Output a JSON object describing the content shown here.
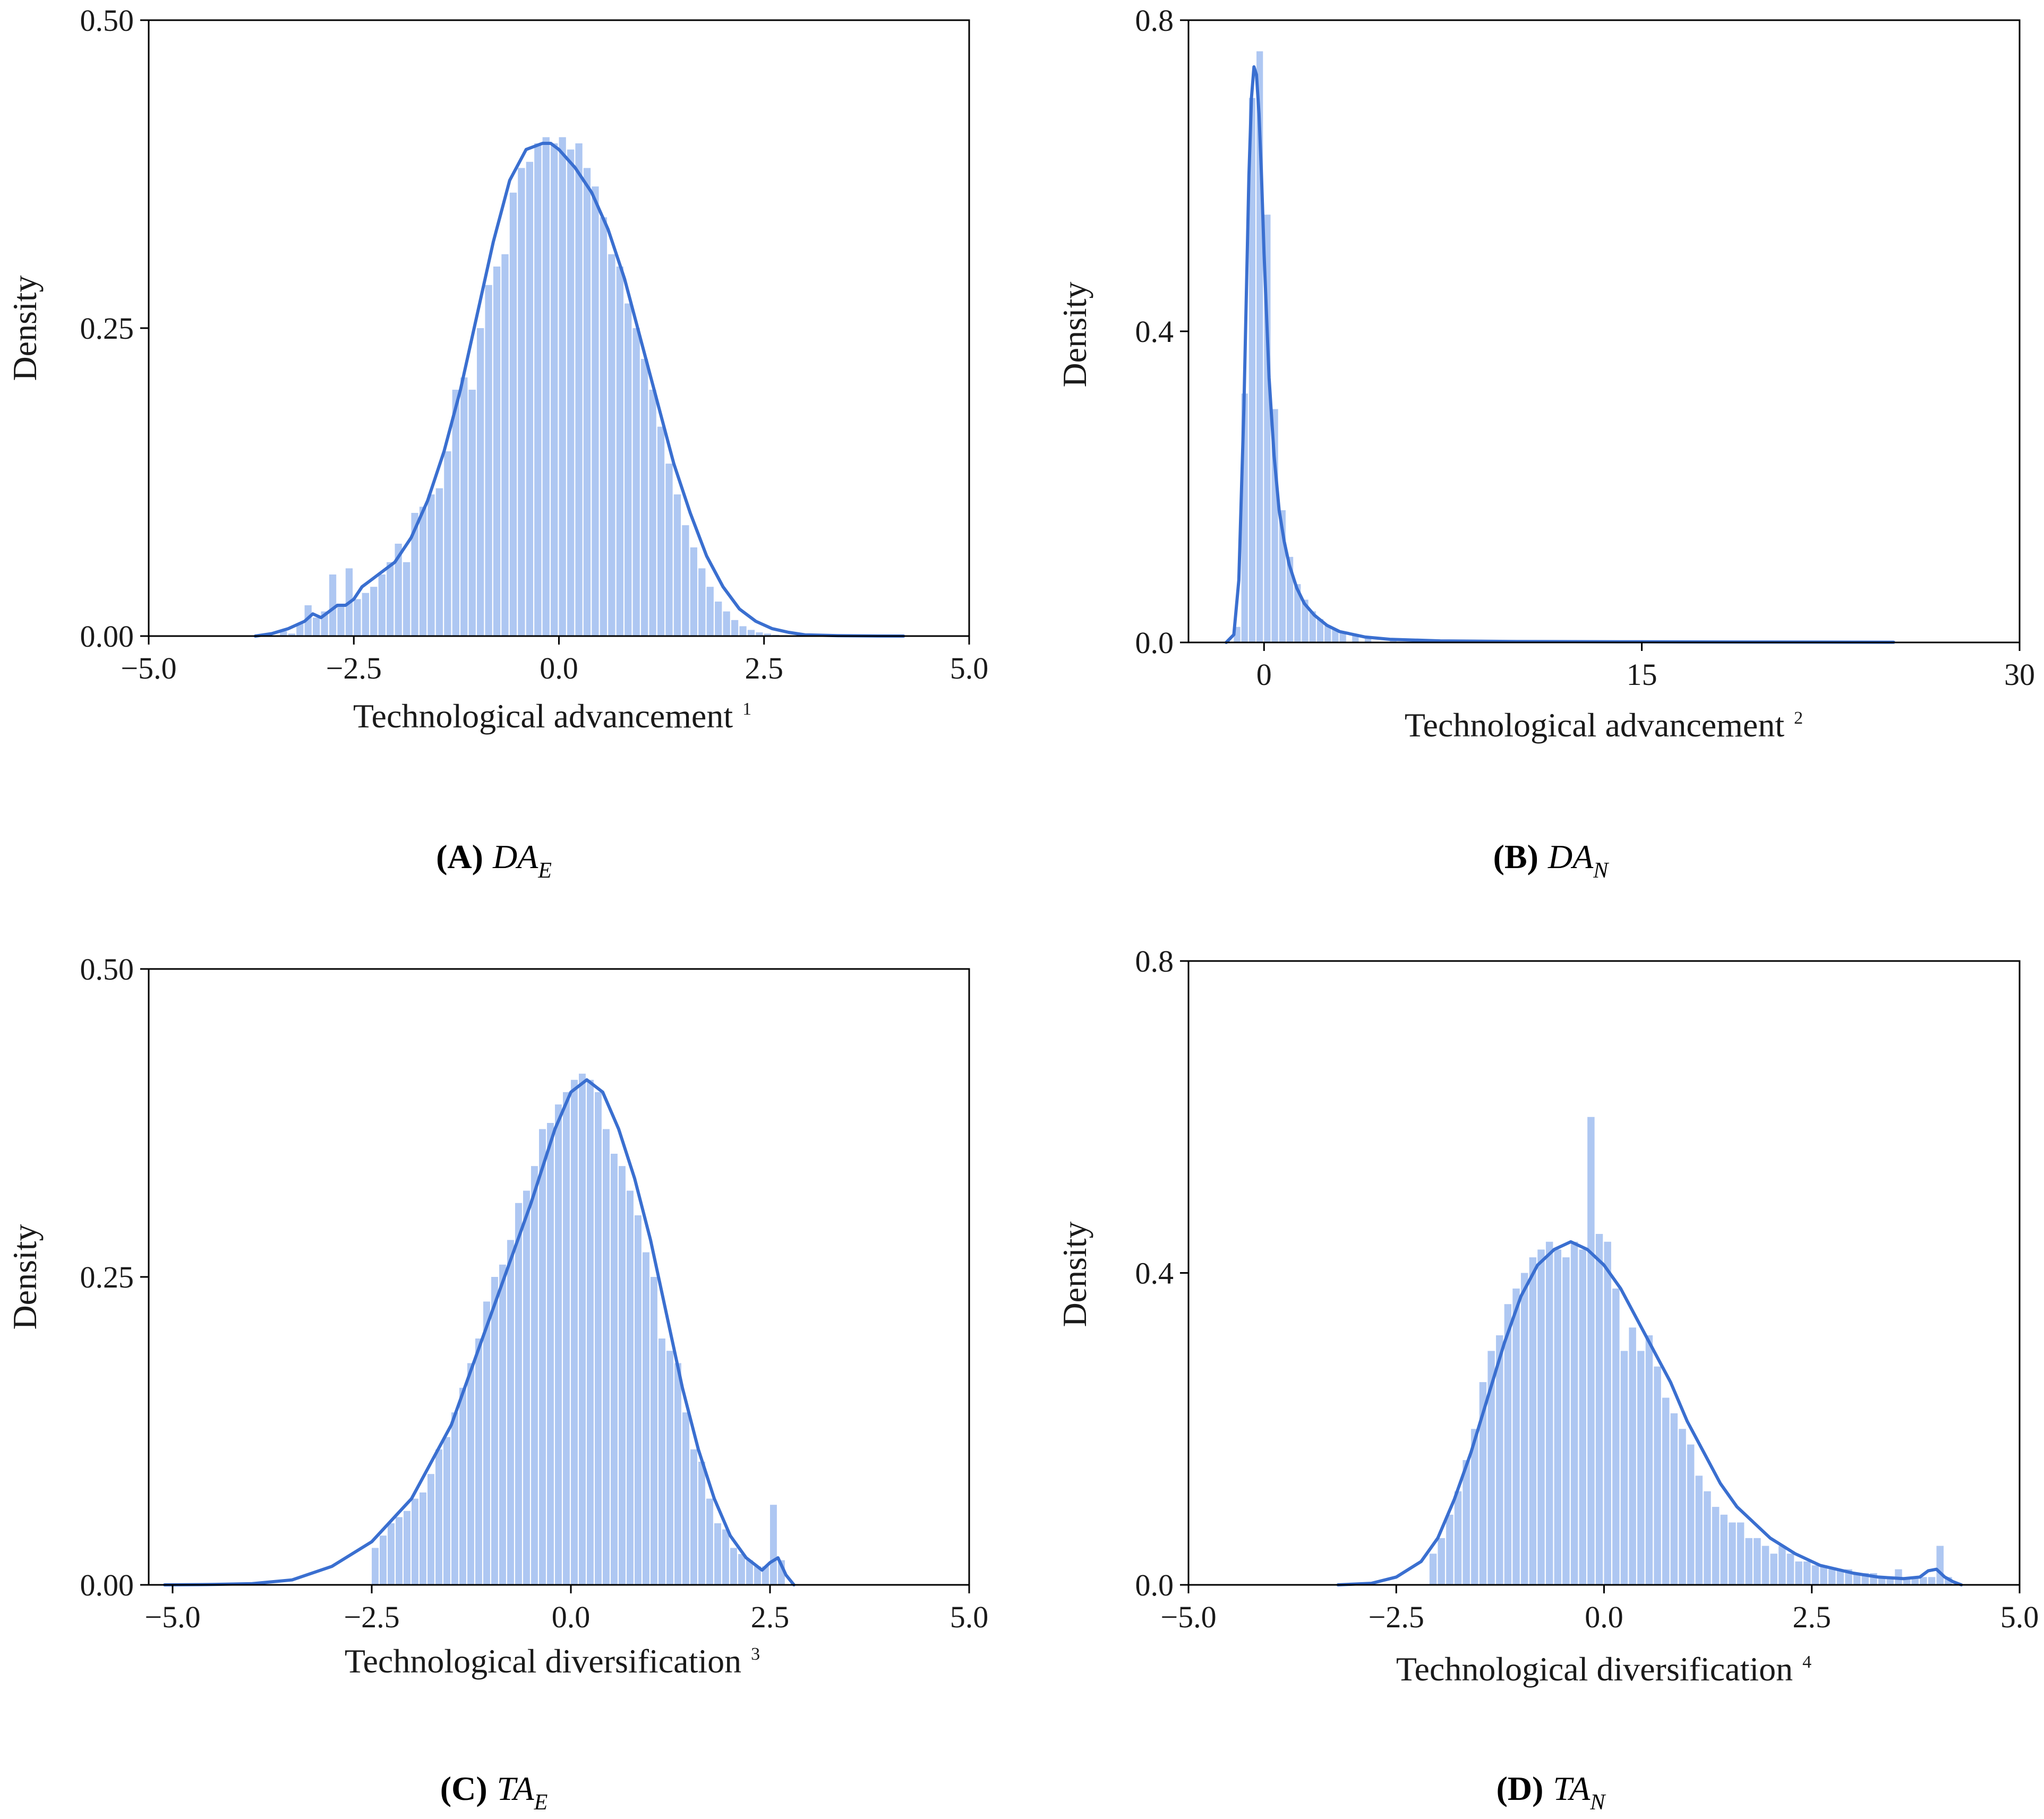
{
  "colors": {
    "bar": "#aec7f2",
    "kde": "#3a6fd0",
    "axis": "#000000"
  },
  "chart_data": [
    {
      "id": "A",
      "type": "histogram-kde",
      "caption_letter": "(A)",
      "caption_var": "DA",
      "caption_sub": "E",
      "xlabel": "Technological advancement",
      "xlabel_sup": "1",
      "ylabel": "Density",
      "xlim": [
        -5.0,
        5.0
      ],
      "ylim": [
        0.0,
        0.5
      ],
      "xticks": [
        -5.0,
        -2.5,
        0.0,
        2.5,
        5.0
      ],
      "xtick_labels": [
        "−5.0",
        "−2.5",
        "0.0",
        "2.5",
        "5.0"
      ],
      "yticks": [
        0.0,
        0.25,
        0.5
      ],
      "ytick_labels": [
        "0.00",
        "0.25",
        "0.50"
      ],
      "bins": {
        "x": [
          -3.4,
          -3.3,
          -3.2,
          -3.1,
          -3.0,
          -2.9,
          -2.8,
          -2.7,
          -2.6,
          -2.5,
          -2.4,
          -2.3,
          -2.2,
          -2.1,
          -2.0,
          -1.9,
          -1.8,
          -1.7,
          -1.6,
          -1.5,
          -1.4,
          -1.3,
          -1.2,
          -1.1,
          -1.0,
          -0.9,
          -0.8,
          -0.7,
          -0.6,
          -0.5,
          -0.4,
          -0.3,
          -0.2,
          -0.1,
          0.0,
          0.1,
          0.2,
          0.3,
          0.4,
          0.5,
          0.6,
          0.7,
          0.8,
          0.9,
          1.0,
          1.1,
          1.2,
          1.3,
          1.4,
          1.5,
          1.6,
          1.7,
          1.8,
          1.9,
          2.0,
          2.1,
          2.2,
          2.3,
          2.4,
          2.5,
          2.6,
          2.7,
          2.8,
          2.9
        ],
        "y": [
          0.004,
          0.002,
          0.01,
          0.025,
          0.015,
          0.02,
          0.05,
          0.025,
          0.055,
          0.03,
          0.035,
          0.04,
          0.05,
          0.06,
          0.075,
          0.06,
          0.1,
          0.105,
          0.115,
          0.12,
          0.15,
          0.2,
          0.21,
          0.2,
          0.25,
          0.285,
          0.3,
          0.31,
          0.36,
          0.38,
          0.385,
          0.4,
          0.405,
          0.4,
          0.405,
          0.395,
          0.4,
          0.38,
          0.365,
          0.34,
          0.31,
          0.3,
          0.27,
          0.25,
          0.225,
          0.2,
          0.17,
          0.14,
          0.115,
          0.09,
          0.072,
          0.055,
          0.04,
          0.028,
          0.02,
          0.013,
          0.008,
          0.005,
          0.003,
          0.002,
          0.001,
          0.0005,
          0.0003,
          0.0002
        ],
        "width": 0.1
      },
      "kde": {
        "x": [
          -3.7,
          -3.5,
          -3.3,
          -3.1,
          -3.0,
          -2.9,
          -2.8,
          -2.7,
          -2.6,
          -2.5,
          -2.4,
          -2.3,
          -2.2,
          -2.0,
          -1.8,
          -1.6,
          -1.4,
          -1.2,
          -1.0,
          -0.8,
          -0.6,
          -0.4,
          -0.2,
          -0.1,
          0.0,
          0.2,
          0.4,
          0.6,
          0.8,
          1.0,
          1.2,
          1.4,
          1.6,
          1.8,
          2.0,
          2.2,
          2.4,
          2.6,
          2.8,
          3.0,
          3.4,
          3.8,
          4.2
        ],
        "y": [
          0.0,
          0.002,
          0.006,
          0.012,
          0.018,
          0.015,
          0.02,
          0.025,
          0.025,
          0.03,
          0.04,
          0.045,
          0.05,
          0.06,
          0.08,
          0.11,
          0.15,
          0.2,
          0.26,
          0.32,
          0.37,
          0.395,
          0.4,
          0.4,
          0.395,
          0.38,
          0.36,
          0.33,
          0.29,
          0.24,
          0.19,
          0.14,
          0.1,
          0.065,
          0.04,
          0.022,
          0.012,
          0.006,
          0.003,
          0.001,
          0.0003,
          0.0001,
          0.0
        ]
      }
    },
    {
      "id": "B",
      "type": "histogram-kde",
      "caption_letter": "(B)",
      "caption_var": "DA",
      "caption_sub": "N",
      "xlabel": "Technological advancement",
      "xlabel_sup": "2",
      "ylabel": "Density",
      "xlim": [
        -3.0,
        30.0
      ],
      "ylim": [
        0.0,
        0.8
      ],
      "xticks": [
        0,
        15,
        30
      ],
      "xtick_labels": [
        "0",
        "15",
        "30"
      ],
      "yticks": [
        0.0,
        0.4,
        0.8
      ],
      "ytick_labels": [
        "0.0",
        "0.4",
        "0.8"
      ],
      "bins": {
        "x": [
          -1.2,
          -0.9,
          -0.6,
          -0.3,
          0.0,
          0.3,
          0.6,
          0.9,
          1.2,
          1.5,
          1.8,
          2.1,
          2.4,
          2.7,
          3.0,
          3.5,
          4.0,
          5.0,
          6.0,
          8.0,
          10.0,
          14.0,
          18.0,
          22.0
        ],
        "y": [
          0.02,
          0.32,
          0.7,
          0.76,
          0.55,
          0.3,
          0.17,
          0.11,
          0.075,
          0.055,
          0.04,
          0.03,
          0.022,
          0.017,
          0.013,
          0.009,
          0.006,
          0.004,
          0.003,
          0.002,
          0.0015,
          0.001,
          0.0008,
          0.0005
        ],
        "width": 0.3
      },
      "kde": {
        "x": [
          -1.5,
          -1.2,
          -1.0,
          -0.8,
          -0.6,
          -0.5,
          -0.4,
          -0.3,
          -0.2,
          -0.1,
          0.0,
          0.2,
          0.4,
          0.6,
          0.8,
          1.0,
          1.3,
          1.6,
          2.0,
          2.5,
          3.0,
          4.0,
          5.0,
          7.0,
          10.0,
          15.0,
          20.0,
          25.0
        ],
        "y": [
          0.0,
          0.01,
          0.08,
          0.3,
          0.6,
          0.7,
          0.74,
          0.73,
          0.68,
          0.6,
          0.5,
          0.34,
          0.24,
          0.17,
          0.13,
          0.1,
          0.07,
          0.05,
          0.035,
          0.022,
          0.014,
          0.007,
          0.004,
          0.002,
          0.0012,
          0.0008,
          0.0005,
          0.0003
        ]
      }
    },
    {
      "id": "C",
      "type": "histogram-kde",
      "caption_letter": "(C)",
      "caption_var": "TA",
      "caption_sub": "E",
      "xlabel": "Technological diversification",
      "xlabel_sup": "3",
      "ylabel": "Density",
      "xlim": [
        -5.3,
        5.0
      ],
      "ylim": [
        0.0,
        0.5
      ],
      "xticks": [
        -5.0,
        -2.5,
        0.0,
        2.5,
        5.0
      ],
      "xtick_labels": [
        "−5.0",
        "−2.5",
        "0.0",
        "2.5",
        "5.0"
      ],
      "yticks": [
        0.0,
        0.25,
        0.5
      ],
      "ytick_labels": [
        "0.00",
        "0.25",
        "0.50"
      ],
      "bins": {
        "x": [
          -2.5,
          -2.4,
          -2.3,
          -2.2,
          -2.1,
          -2.0,
          -1.9,
          -1.8,
          -1.7,
          -1.6,
          -1.5,
          -1.4,
          -1.3,
          -1.2,
          -1.1,
          -1.0,
          -0.9,
          -0.8,
          -0.7,
          -0.6,
          -0.5,
          -0.4,
          -0.3,
          -0.2,
          -0.1,
          0.0,
          0.1,
          0.2,
          0.3,
          0.4,
          0.5,
          0.6,
          0.7,
          0.8,
          0.9,
          1.0,
          1.1,
          1.2,
          1.3,
          1.4,
          1.5,
          1.6,
          1.7,
          1.8,
          1.9,
          2.0,
          2.1,
          2.2,
          2.3,
          2.4,
          2.5,
          2.6
        ],
        "y": [
          0.03,
          0.04,
          0.05,
          0.055,
          0.06,
          0.07,
          0.075,
          0.09,
          0.11,
          0.12,
          0.14,
          0.16,
          0.18,
          0.2,
          0.23,
          0.25,
          0.26,
          0.28,
          0.31,
          0.32,
          0.34,
          0.37,
          0.375,
          0.39,
          0.4,
          0.41,
          0.415,
          0.41,
          0.4,
          0.37,
          0.35,
          0.34,
          0.32,
          0.3,
          0.27,
          0.25,
          0.2,
          0.19,
          0.18,
          0.14,
          0.11,
          0.1,
          0.07,
          0.05,
          0.045,
          0.03,
          0.025,
          0.02,
          0.015,
          0.015,
          0.065,
          0.02
        ],
        "width": 0.1
      },
      "kde": {
        "x": [
          -5.1,
          -4.5,
          -4.0,
          -3.5,
          -3.0,
          -2.5,
          -2.0,
          -1.5,
          -1.0,
          -0.5,
          -0.2,
          0.0,
          0.2,
          0.4,
          0.6,
          0.8,
          1.0,
          1.2,
          1.4,
          1.6,
          1.8,
          2.0,
          2.2,
          2.4,
          2.5,
          2.6,
          2.7,
          2.8
        ],
        "y": [
          0.0,
          0.0003,
          0.001,
          0.004,
          0.015,
          0.035,
          0.07,
          0.13,
          0.22,
          0.31,
          0.37,
          0.4,
          0.41,
          0.4,
          0.37,
          0.33,
          0.28,
          0.22,
          0.16,
          0.11,
          0.07,
          0.04,
          0.022,
          0.012,
          0.018,
          0.022,
          0.008,
          0.0
        ]
      }
    },
    {
      "id": "D",
      "type": "histogram-kde",
      "caption_letter": "(D)",
      "caption_var": "TA",
      "caption_sub": "N",
      "xlabel": "Technological diversification",
      "xlabel_sup": "4",
      "ylabel": "Density",
      "xlim": [
        -5.0,
        5.0
      ],
      "ylim": [
        0.0,
        0.8
      ],
      "xticks": [
        -5.0,
        -2.5,
        0.0,
        2.5,
        5.0
      ],
      "xtick_labels": [
        "−5.0",
        "−2.5",
        "0.0",
        "2.5",
        "5.0"
      ],
      "yticks": [
        0.0,
        0.4,
        0.8
      ],
      "ytick_labels": [
        "0.0",
        "0.4",
        "0.8"
      ],
      "bins": {
        "x": [
          -2.1,
          -2.0,
          -1.9,
          -1.8,
          -1.7,
          -1.6,
          -1.5,
          -1.4,
          -1.3,
          -1.2,
          -1.1,
          -1.0,
          -0.9,
          -0.8,
          -0.7,
          -0.6,
          -0.5,
          -0.4,
          -0.3,
          -0.2,
          -0.1,
          0.0,
          0.1,
          0.2,
          0.3,
          0.4,
          0.5,
          0.6,
          0.7,
          0.8,
          0.9,
          1.0,
          1.1,
          1.2,
          1.3,
          1.4,
          1.5,
          1.6,
          1.7,
          1.8,
          1.9,
          2.0,
          2.1,
          2.2,
          2.3,
          2.4,
          2.5,
          2.6,
          2.7,
          2.8,
          2.9,
          3.0,
          3.1,
          3.2,
          3.3,
          3.4,
          3.5,
          3.6,
          3.7,
          3.8,
          3.9,
          4.0,
          4.1
        ],
        "y": [
          0.04,
          0.06,
          0.09,
          0.12,
          0.16,
          0.2,
          0.26,
          0.3,
          0.32,
          0.36,
          0.38,
          0.4,
          0.42,
          0.43,
          0.44,
          0.43,
          0.42,
          0.44,
          0.43,
          0.6,
          0.45,
          0.44,
          0.38,
          0.3,
          0.33,
          0.3,
          0.32,
          0.28,
          0.24,
          0.22,
          0.2,
          0.18,
          0.14,
          0.12,
          0.1,
          0.09,
          0.08,
          0.08,
          0.06,
          0.06,
          0.05,
          0.04,
          0.05,
          0.04,
          0.03,
          0.03,
          0.025,
          0.025,
          0.02,
          0.02,
          0.02,
          0.015,
          0.015,
          0.015,
          0.01,
          0.01,
          0.02,
          0.01,
          0.01,
          0.01,
          0.01,
          0.05,
          0.01
        ],
        "width": 0.1
      },
      "kde": {
        "x": [
          -3.2,
          -2.8,
          -2.5,
          -2.2,
          -2.0,
          -1.8,
          -1.6,
          -1.4,
          -1.2,
          -1.0,
          -0.8,
          -0.6,
          -0.4,
          -0.2,
          0.0,
          0.2,
          0.4,
          0.6,
          0.8,
          1.0,
          1.2,
          1.4,
          1.6,
          1.8,
          2.0,
          2.3,
          2.6,
          3.0,
          3.3,
          3.6,
          3.8,
          3.9,
          4.0,
          4.1,
          4.2,
          4.3
        ],
        "y": [
          0.0,
          0.002,
          0.01,
          0.03,
          0.06,
          0.11,
          0.17,
          0.24,
          0.31,
          0.37,
          0.41,
          0.43,
          0.44,
          0.43,
          0.41,
          0.38,
          0.34,
          0.3,
          0.26,
          0.21,
          0.17,
          0.13,
          0.1,
          0.08,
          0.06,
          0.04,
          0.025,
          0.015,
          0.01,
          0.008,
          0.01,
          0.018,
          0.02,
          0.01,
          0.004,
          0.0
        ]
      }
    }
  ]
}
